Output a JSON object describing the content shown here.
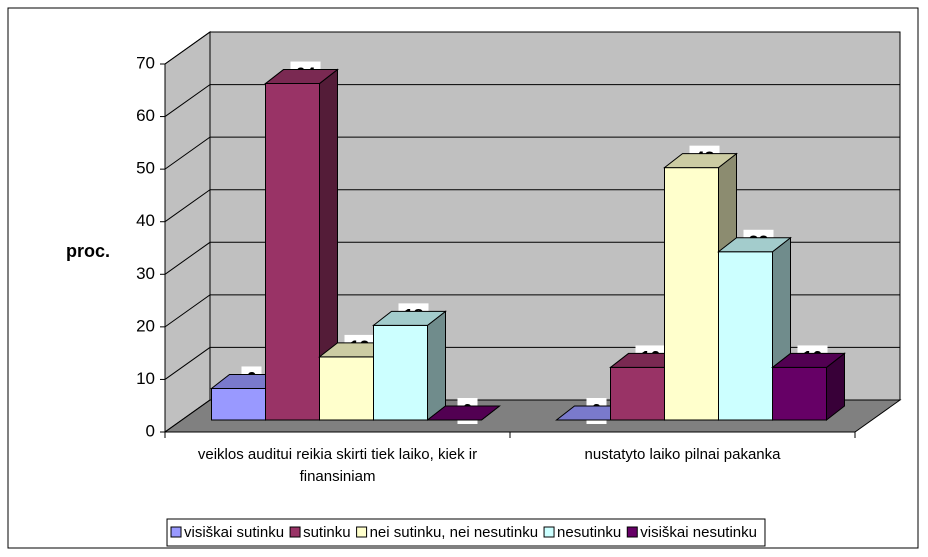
{
  "chart_data": {
    "type": "bar3d",
    "y_label": "proc.",
    "categories": [
      "veiklos auditui reikia skirti tiek laiko, kiek ir finansiniam",
      "nustatyto laiko pilnai pakanka"
    ],
    "series": [
      {
        "name": "visiškai sutinku",
        "color": "#9999ff",
        "values": [
          6,
          0
        ]
      },
      {
        "name": "sutinku",
        "color": "#993366",
        "values": [
          64,
          10
        ]
      },
      {
        "name": "nei sutinku, nei nesutinku",
        "color": "#ffffcc",
        "values": [
          12,
          48
        ]
      },
      {
        "name": "nesutinku",
        "color": "#ccffff",
        "values": [
          18,
          32
        ]
      },
      {
        "name": "visiškai nesutinku",
        "color": "#660066",
        "values": [
          0,
          10
        ]
      }
    ],
    "ylim": [
      0,
      70
    ],
    "yticks": [
      0,
      10,
      20,
      30,
      40,
      50,
      60,
      70
    ],
    "grid": true,
    "legend": "bottom"
  }
}
